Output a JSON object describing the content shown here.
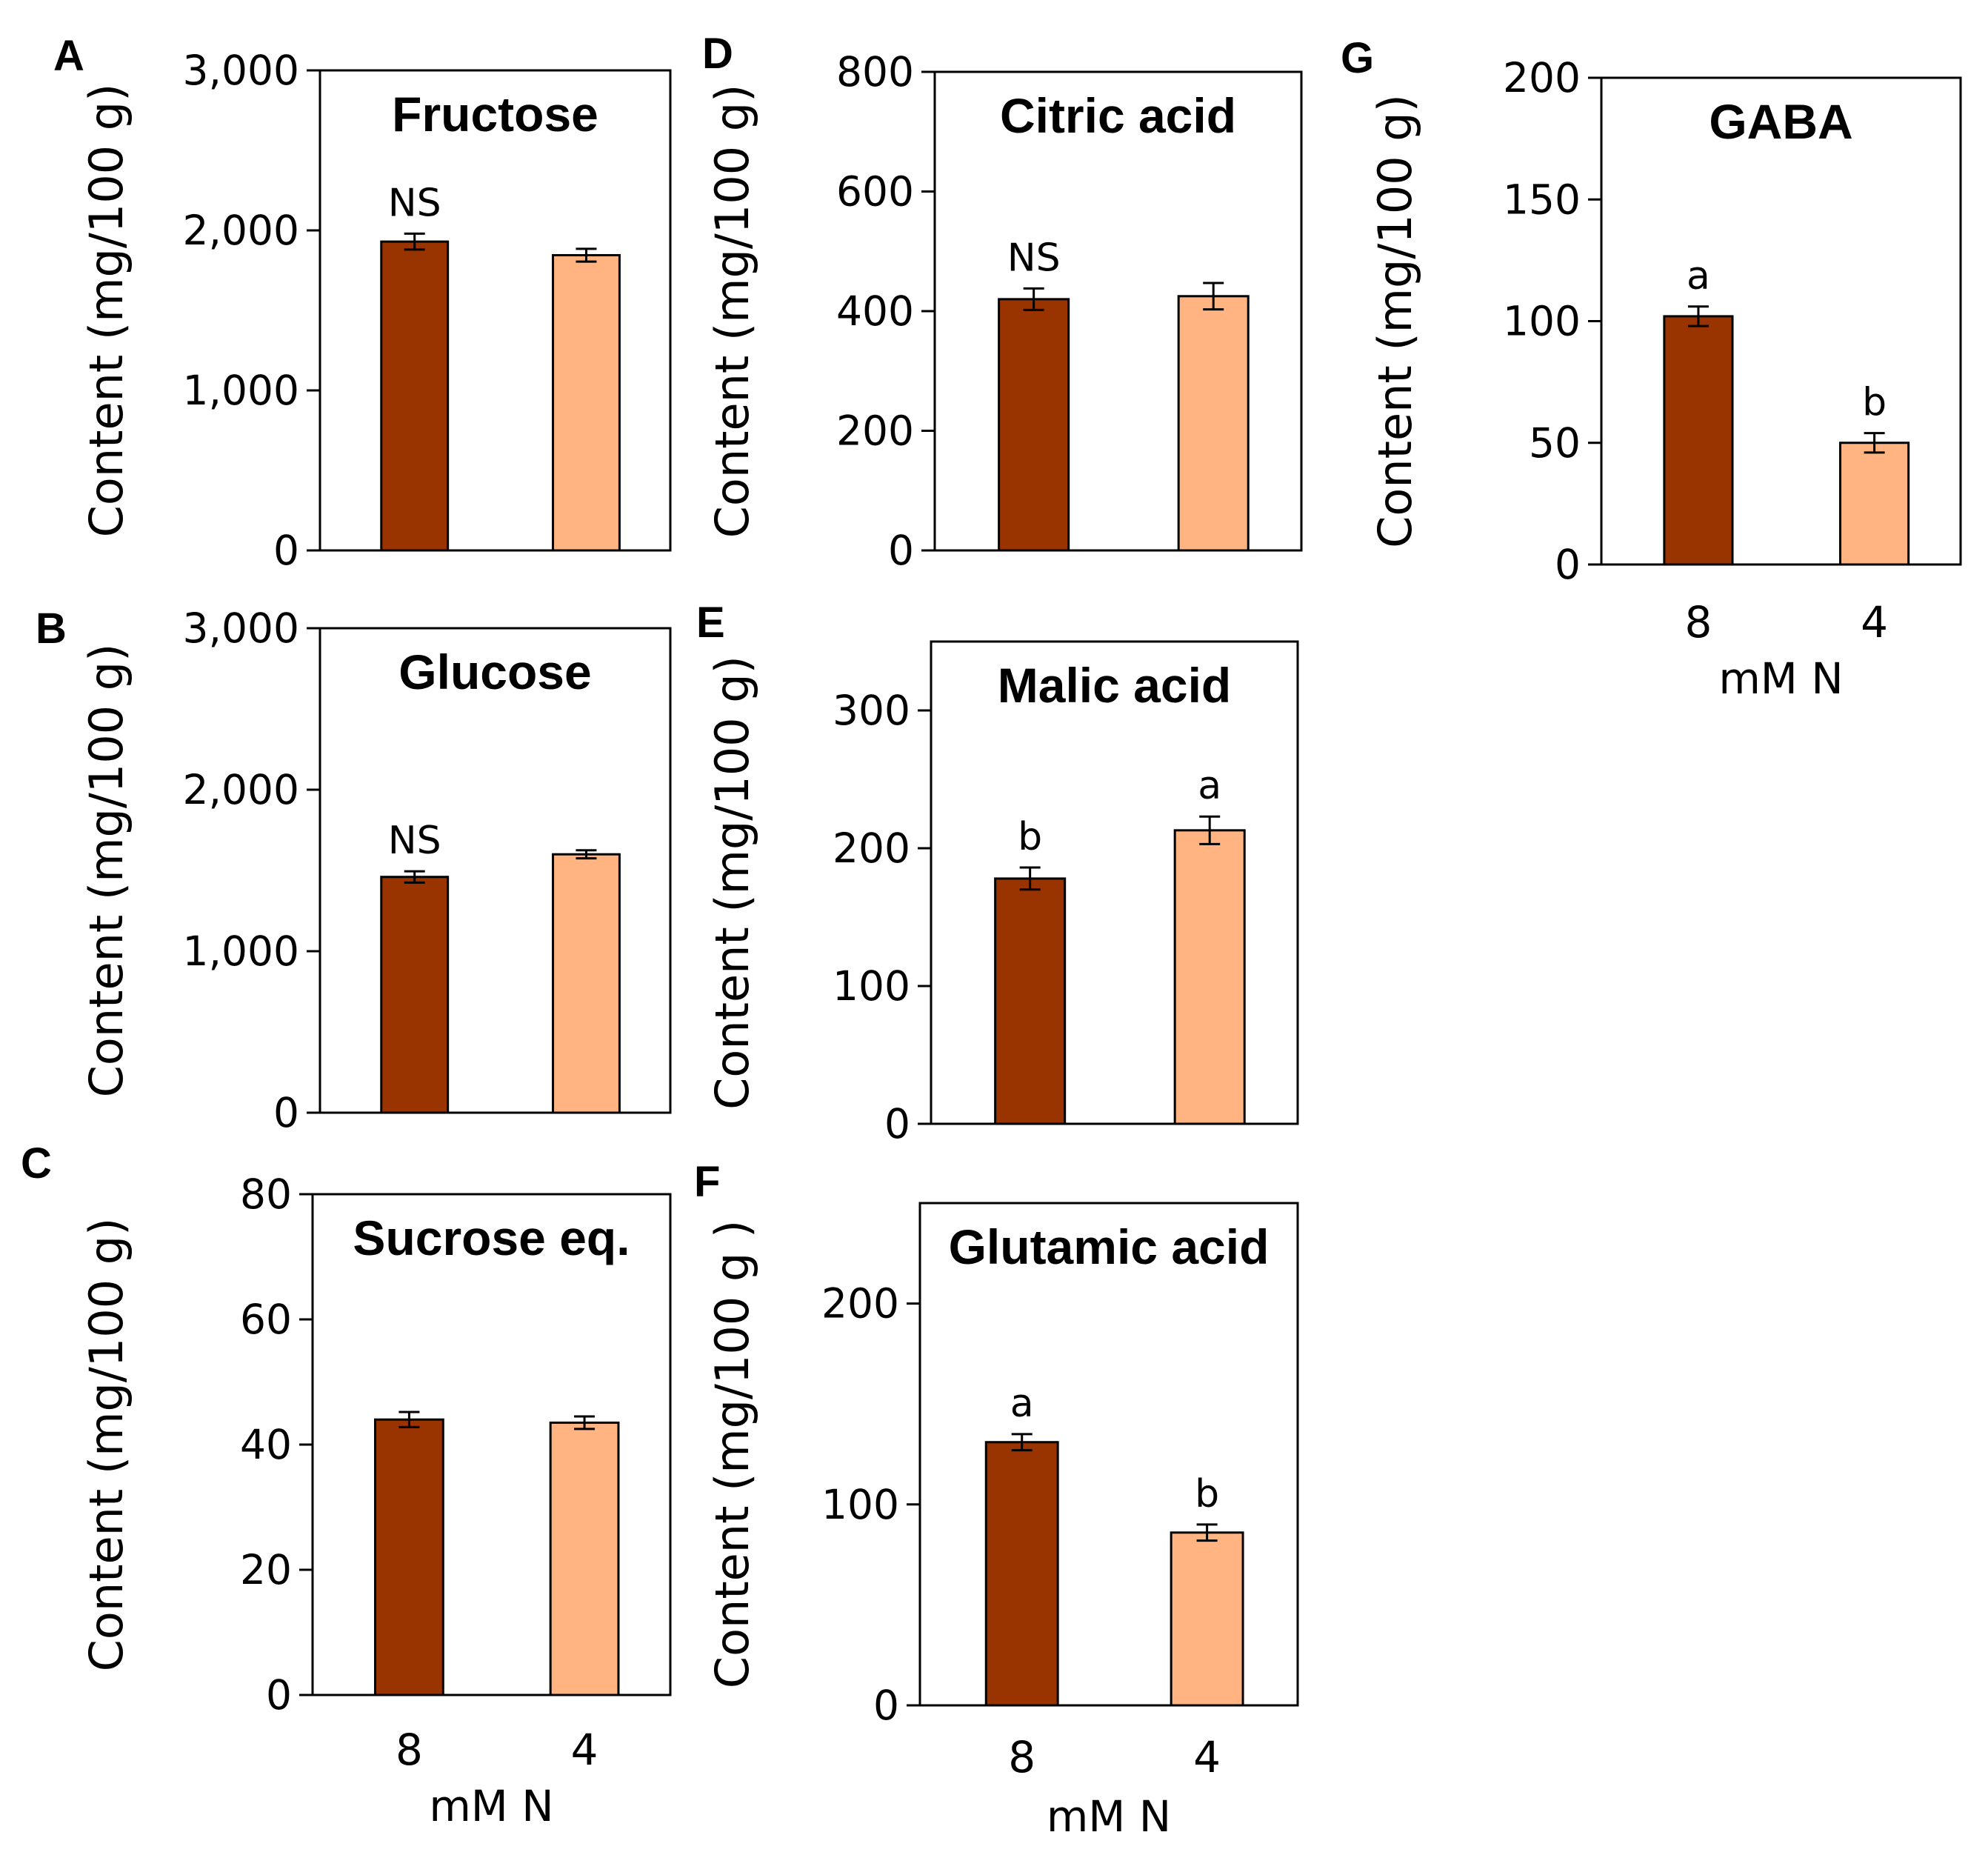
{
  "colors": {
    "n8": "#993300",
    "n4": "#FFB482"
  },
  "chart_data": [
    {
      "panel": "A",
      "type": "bar",
      "title": "Fructose",
      "ylabel": "Content (mg/100 g)",
      "xlabel": "",
      "categories": [
        "8",
        "4"
      ],
      "values": [
        1930,
        1845
      ],
      "errors": [
        50,
        40
      ],
      "ylim": [
        0,
        3000
      ],
      "yticks": [
        0,
        1000,
        2000,
        3000
      ],
      "ytick_labels": [
        "0",
        "1,000",
        "2,000",
        "3,000"
      ],
      "annotations": [
        "NS",
        ""
      ]
    },
    {
      "panel": "B",
      "type": "bar",
      "title": "Glucose",
      "ylabel": "Content (mg/100 g)",
      "xlabel": "",
      "categories": [
        "8",
        "4"
      ],
      "values": [
        1460,
        1600
      ],
      "errors": [
        35,
        25
      ],
      "ylim": [
        0,
        3000
      ],
      "yticks": [
        0,
        1000,
        2000,
        3000
      ],
      "ytick_labels": [
        "0",
        "1,000",
        "2,000",
        "3,000"
      ],
      "annotations": [
        "NS",
        ""
      ]
    },
    {
      "panel": "C",
      "type": "bar",
      "title": "Sucrose eq.",
      "ylabel": "Content (mg/100 g)",
      "xlabel": "mM N",
      "categories": [
        "8",
        "4"
      ],
      "values": [
        44,
        43.5
      ],
      "errors": [
        1.2,
        1.0
      ],
      "ylim": [
        0,
        80
      ],
      "yticks": [
        0,
        20,
        40,
        60,
        80
      ],
      "ytick_labels": [
        "0",
        "20",
        "40",
        "60",
        "80"
      ],
      "annotations": [
        "",
        ""
      ]
    },
    {
      "panel": "D",
      "type": "bar",
      "title": "Citric acid",
      "ylabel": "Content (mg/100 g)",
      "xlabel": "",
      "categories": [
        "8",
        "4"
      ],
      "values": [
        420,
        425
      ],
      "errors": [
        18,
        22
      ],
      "ylim": [
        0,
        800
      ],
      "yticks": [
        0,
        200,
        400,
        600,
        800
      ],
      "ytick_labels": [
        "0",
        "200",
        "400",
        "600",
        "800"
      ],
      "annotations": [
        "NS",
        ""
      ]
    },
    {
      "panel": "E",
      "type": "bar",
      "title": "Malic acid",
      "ylabel": "Content (mg/100 g)",
      "xlabel": "",
      "categories": [
        "8",
        "4"
      ],
      "values": [
        178,
        213
      ],
      "errors": [
        8,
        10
      ],
      "ylim": [
        0,
        350
      ],
      "yticks": [
        0,
        100,
        200,
        300
      ],
      "ytick_labels": [
        "0",
        "100",
        "200",
        "300"
      ],
      "annotations": [
        "b",
        "a"
      ]
    },
    {
      "panel": "F",
      "type": "bar",
      "title": "Glutamic acid",
      "ylabel": "Content (mg/100 g )",
      "xlabel": "mM N",
      "categories": [
        "8",
        "4"
      ],
      "values": [
        131,
        86
      ],
      "errors": [
        4,
        4
      ],
      "ylim": [
        0,
        250
      ],
      "yticks": [
        0,
        100,
        200
      ],
      "ytick_labels": [
        "0",
        "100",
        "200"
      ],
      "annotations": [
        "a",
        "b"
      ]
    },
    {
      "panel": "G",
      "type": "bar",
      "title": "GABA",
      "ylabel": "Content (mg/100 g)",
      "xlabel": "mM N",
      "categories": [
        "8",
        "4"
      ],
      "values": [
        102,
        50
      ],
      "errors": [
        4,
        4
      ],
      "ylim": [
        0,
        200
      ],
      "yticks": [
        0,
        50,
        100,
        150,
        200
      ],
      "ytick_labels": [
        "0",
        "50",
        "100",
        "150",
        "200"
      ],
      "annotations": [
        "a",
        "b"
      ]
    }
  ]
}
